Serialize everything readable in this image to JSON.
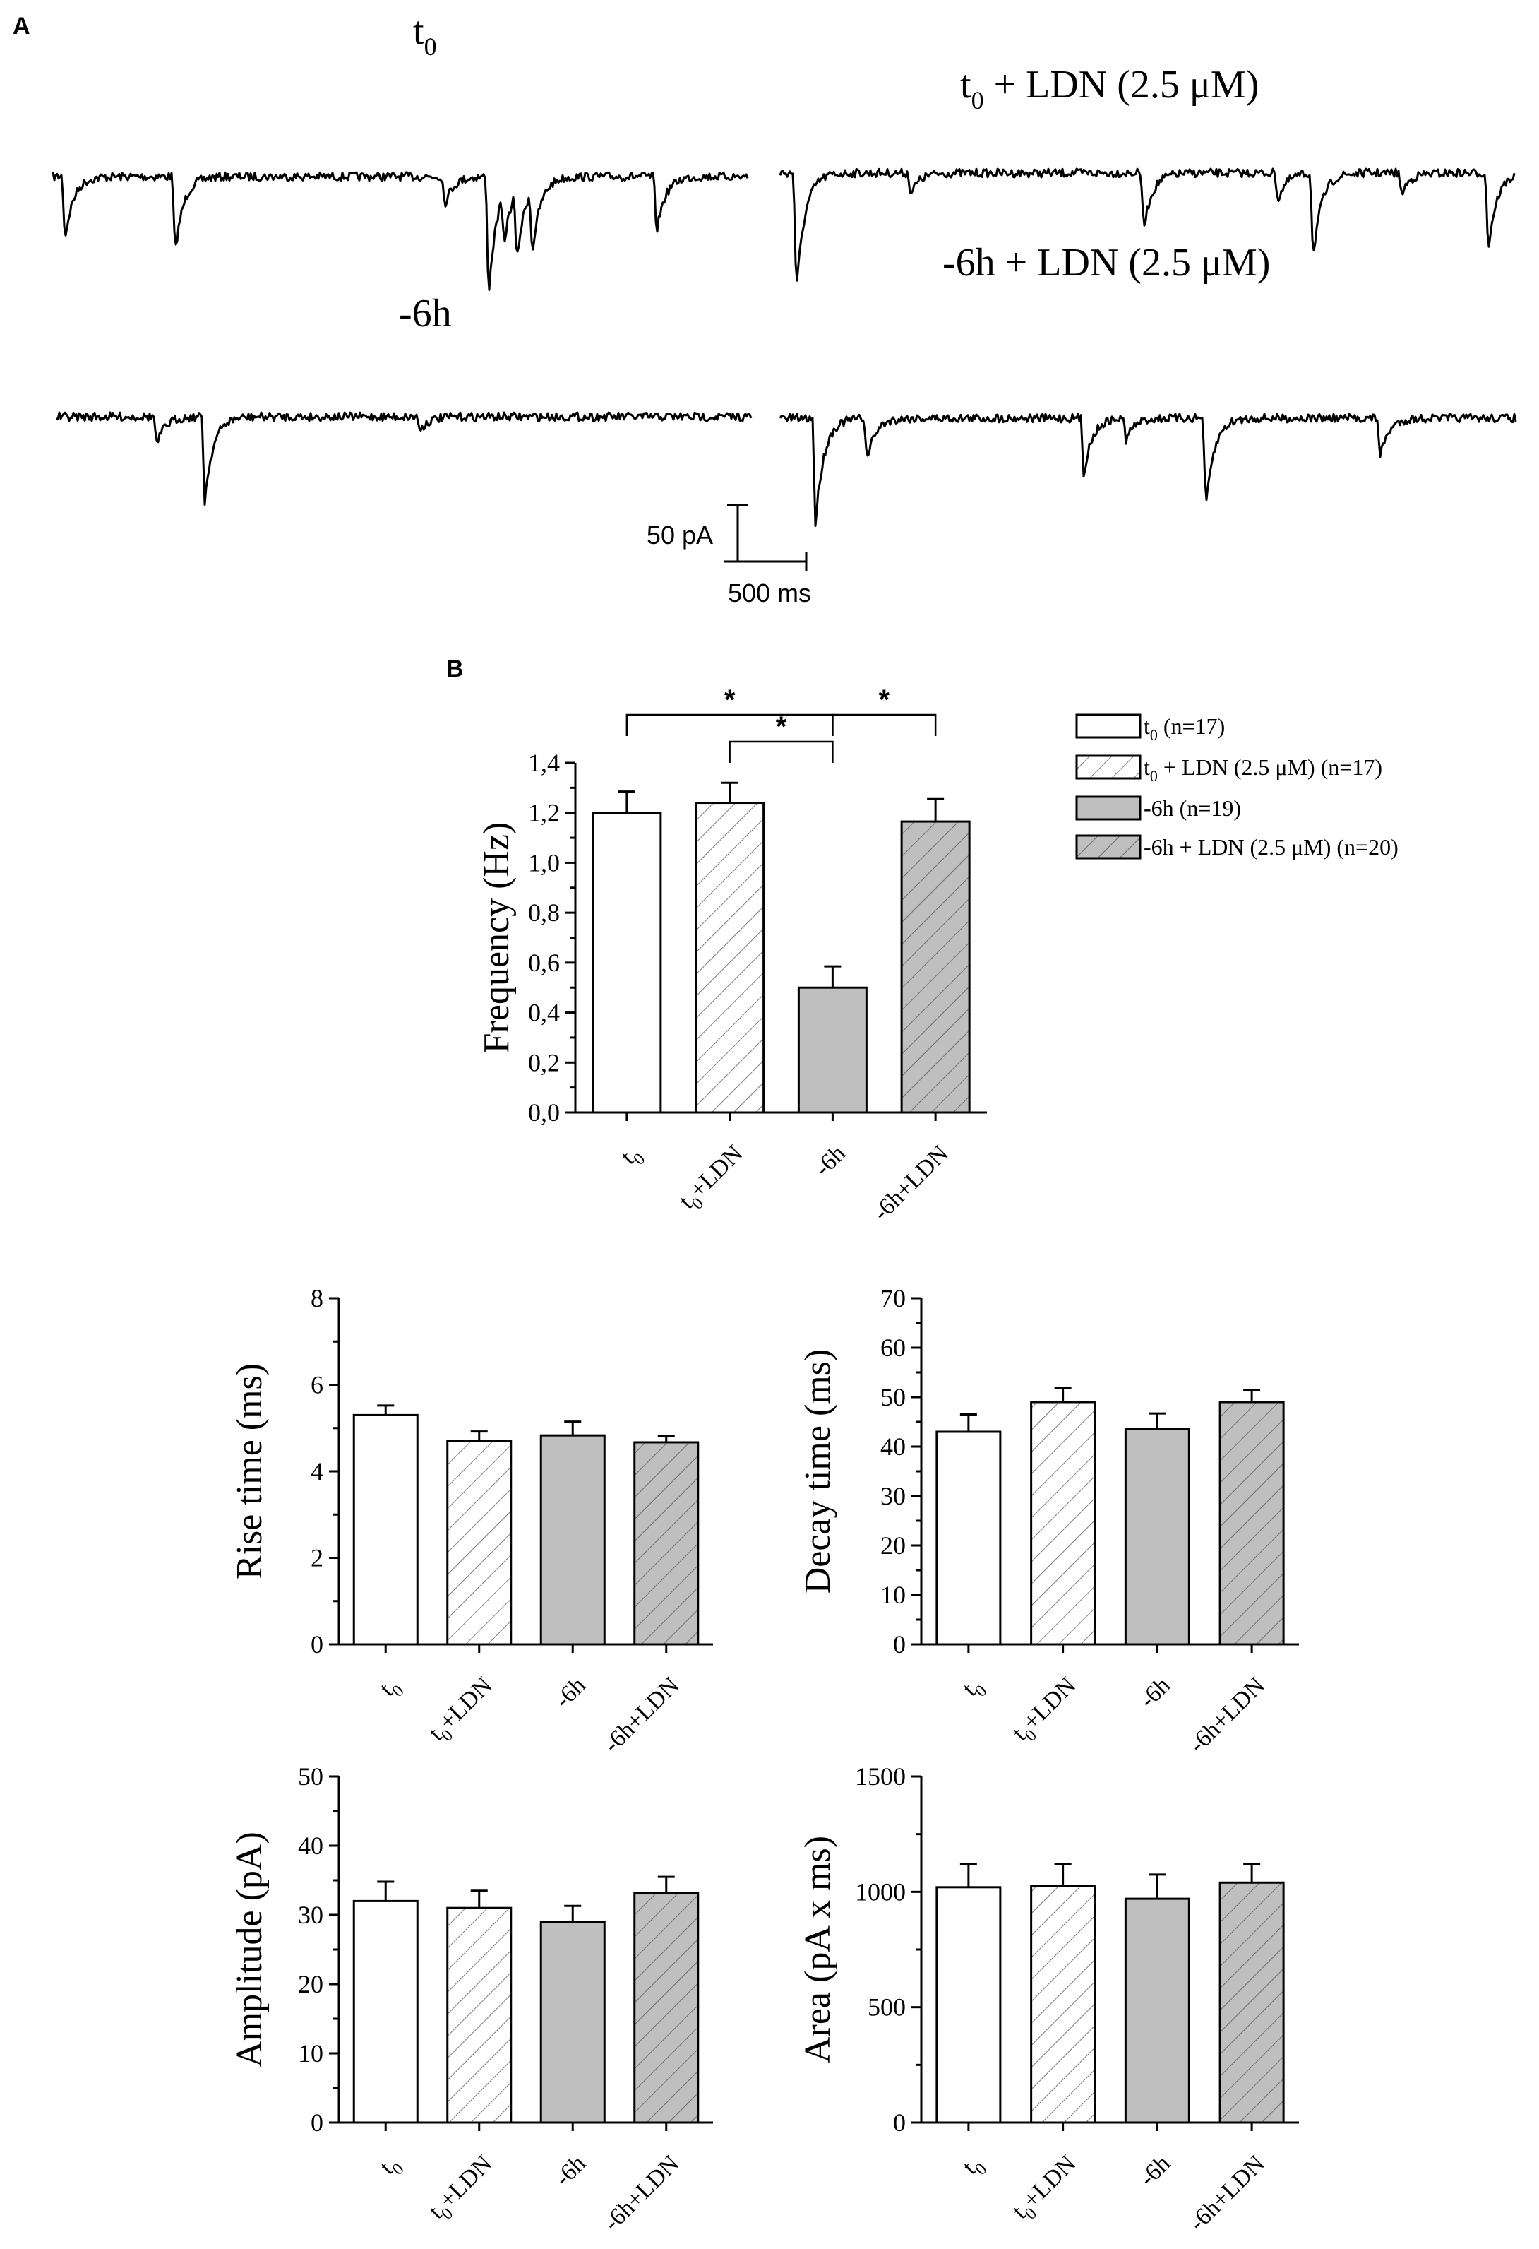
{
  "panel_a": {
    "letter": "A",
    "traces": [
      {
        "label": "t",
        "label_sub": "0",
        "label_suffix": ""
      },
      {
        "label": "t",
        "label_sub": "0",
        "label_suffix": " + LDN (2.5 μM)"
      },
      {
        "label": "-6h",
        "label_sub": "",
        "label_suffix": ""
      },
      {
        "label": "-6h + LDN (2.5 μM)",
        "label_sub": "",
        "label_suffix": ""
      }
    ],
    "scale_bar": {
      "current_label": "50 pA",
      "time_label": "500 ms"
    }
  },
  "panel_b": {
    "letter": "B"
  },
  "legend": {
    "entries": [
      {
        "main": "t",
        "sub": "0",
        "rest": " (n=17)",
        "fill": "#ffffff",
        "hatched": false
      },
      {
        "main": "t",
        "sub": "0",
        "rest": " + LDN (2.5 μM)  (n=17)",
        "fill": "#ffffff",
        "hatched": true
      },
      {
        "main": "-6h (n=19)",
        "sub": "",
        "rest": "",
        "fill": "#bfbfbf",
        "hatched": false
      },
      {
        "main": "-6h + LDN (2.5 μM) (n=20)",
        "sub": "",
        "rest": "",
        "fill": "#bfbfbf",
        "hatched": true
      }
    ]
  },
  "chart_data": [
    {
      "id": "frequency",
      "type": "bar",
      "ylabel": "Frequency (Hz)",
      "ylim": [
        0,
        1.4
      ],
      "yticks": [
        0,
        0.2,
        0.4,
        0.6,
        0.8,
        1.0,
        1.2,
        1.4
      ],
      "ytick_labels": [
        "0,0",
        "0,2",
        "0,4",
        "0,6",
        "0,8",
        "1,0",
        "1,2",
        "1,4"
      ],
      "categories": [
        {
          "main": "t",
          "sub": "0",
          "rest": ""
        },
        {
          "main": "t",
          "sub": "0",
          "rest": "+LDN"
        },
        {
          "main": "-6h",
          "sub": "",
          "rest": ""
        },
        {
          "main": "-6h+LDN",
          "sub": "",
          "rest": ""
        }
      ],
      "values": [
        1.2,
        1.24,
        0.5,
        1.165
      ],
      "errors": [
        0.085,
        0.08,
        0.085,
        0.09
      ],
      "significance": [
        {
          "from": 0,
          "to": 2,
          "label": "*"
        },
        {
          "from": 1,
          "to": 2,
          "label": "*"
        },
        {
          "from": 2,
          "to": 3,
          "label": "*"
        }
      ]
    },
    {
      "id": "rise",
      "type": "bar",
      "ylabel": "Rise time (ms)",
      "ylim": [
        0,
        8
      ],
      "yticks": [
        0,
        2,
        4,
        6,
        8
      ],
      "ytick_labels": [
        "0",
        "2",
        "4",
        "6",
        "8"
      ],
      "categories": [
        {
          "main": "t",
          "sub": "0",
          "rest": ""
        },
        {
          "main": "t",
          "sub": "0",
          "rest": "+LDN"
        },
        {
          "main": "-6h",
          "sub": "",
          "rest": ""
        },
        {
          "main": "-6h+LDN",
          "sub": "",
          "rest": ""
        }
      ],
      "values": [
        5.3,
        4.7,
        4.83,
        4.67
      ],
      "errors": [
        0.22,
        0.22,
        0.32,
        0.15
      ],
      "significance": []
    },
    {
      "id": "decay",
      "type": "bar",
      "ylabel": "Decay time (ms)",
      "ylim": [
        0,
        70
      ],
      "yticks": [
        0,
        10,
        20,
        30,
        40,
        50,
        60,
        70
      ],
      "ytick_labels": [
        "0",
        "10",
        "20",
        "30",
        "40",
        "50",
        "60",
        "70"
      ],
      "categories": [
        {
          "main": "t",
          "sub": "0",
          "rest": ""
        },
        {
          "main": "t",
          "sub": "0",
          "rest": "+LDN"
        },
        {
          "main": "-6h",
          "sub": "",
          "rest": ""
        },
        {
          "main": "-6h+LDN",
          "sub": "",
          "rest": ""
        }
      ],
      "values": [
        43,
        49,
        43.5,
        49
      ],
      "errors": [
        3.5,
        2.8,
        3.2,
        2.5
      ],
      "significance": []
    },
    {
      "id": "amplitude",
      "type": "bar",
      "ylabel": "Amplitude (pA)",
      "ylim": [
        0,
        50
      ],
      "yticks": [
        0,
        10,
        20,
        30,
        40,
        50
      ],
      "ytick_labels": [
        "0",
        "10",
        "20",
        "30",
        "40",
        "50"
      ],
      "categories": [
        {
          "main": "t",
          "sub": "0",
          "rest": ""
        },
        {
          "main": "t",
          "sub": "0",
          "rest": "+LDN"
        },
        {
          "main": "-6h",
          "sub": "",
          "rest": ""
        },
        {
          "main": "-6h+LDN",
          "sub": "",
          "rest": ""
        }
      ],
      "values": [
        32,
        31,
        29,
        33.2
      ],
      "errors": [
        2.8,
        2.5,
        2.3,
        2.3
      ],
      "significance": []
    },
    {
      "id": "area",
      "type": "bar",
      "ylabel": "Area (pA x  ms)",
      "ylim": [
        0,
        1500
      ],
      "yticks": [
        0,
        500,
        1000,
        1500
      ],
      "ytick_labels": [
        "0",
        "500",
        "1000",
        "1500"
      ],
      "categories": [
        {
          "main": "t",
          "sub": "0",
          "rest": ""
        },
        {
          "main": "t",
          "sub": "0",
          "rest": "+LDN"
        },
        {
          "main": "-6h",
          "sub": "",
          "rest": ""
        },
        {
          "main": "-6h+LDN",
          "sub": "",
          "rest": ""
        }
      ],
      "values": [
        1020,
        1025,
        970,
        1040
      ],
      "errors": [
        100,
        95,
        105,
        80
      ],
      "significance": []
    }
  ]
}
